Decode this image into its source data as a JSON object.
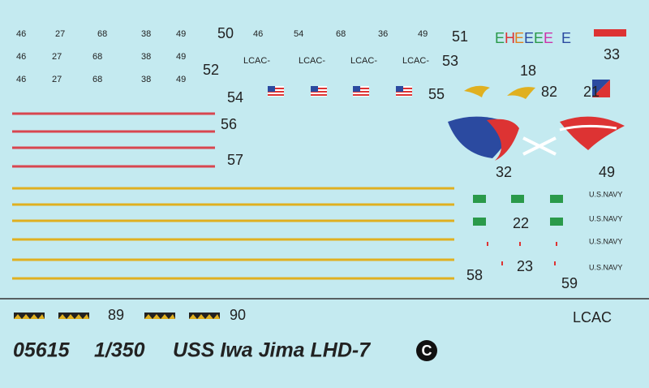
{
  "small_numbers": {
    "rows": [
      [
        "46",
        "27",
        "68",
        "38",
        "49"
      ],
      [
        "46",
        "27",
        "68",
        "38",
        "49"
      ],
      [
        "46",
        "27",
        "68",
        "38",
        "49"
      ]
    ],
    "top_row": [
      "46",
      "54",
      "68",
      "36",
      "49"
    ]
  },
  "lcac_labels": [
    "LCAC-",
    "LCAC-",
    "LCAC-",
    "LCAC-"
  ],
  "callouts": [
    "50",
    "51",
    "52",
    "53",
    "54",
    "55",
    "56",
    "57",
    "18",
    "33",
    "82",
    "21",
    "32",
    "49",
    "22",
    "23",
    "58",
    "59",
    "89",
    "90"
  ],
  "letters": [
    "E",
    "H",
    "E",
    "E",
    "E",
    "E",
    "E"
  ],
  "navy_labels": [
    "U.S.NAVY",
    "U.S.NAVY",
    "U.S.NAVY",
    "U.S.NAVY"
  ],
  "lcac_title": "LCAC",
  "footer": {
    "catalog": "05615",
    "scale": "1/350",
    "name": "USS Iwa Jima LHD-7",
    "mark": "C"
  }
}
